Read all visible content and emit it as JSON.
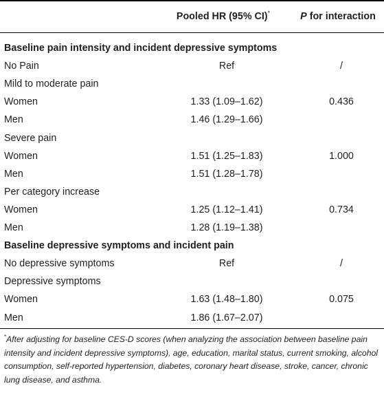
{
  "header": {
    "hr_label": "Pooled HR (95% CI)",
    "hr_marker": "*",
    "p_label_italic": "P",
    "p_label_rest": " for interaction"
  },
  "rows": [
    {
      "type": "section",
      "label": "Baseline pain intensity and incident depressive symptoms",
      "hr": "",
      "p": ""
    },
    {
      "type": "data",
      "label": "No Pain",
      "hr": "Ref",
      "p": "/"
    },
    {
      "type": "data",
      "label": "Mild to moderate pain",
      "hr": "",
      "p": ""
    },
    {
      "type": "data",
      "label": "Women",
      "hr": "1.33 (1.09–1.62)",
      "p": "0.436"
    },
    {
      "type": "data",
      "label": "Men",
      "hr": "1.46 (1.29–1.66)",
      "p": ""
    },
    {
      "type": "data",
      "label": "Severe pain",
      "hr": "",
      "p": ""
    },
    {
      "type": "data",
      "label": "Women",
      "hr": "1.51 (1.25–1.83)",
      "p": "1.000"
    },
    {
      "type": "data",
      "label": "Men",
      "hr": "1.51 (1.28–1.78)",
      "p": ""
    },
    {
      "type": "data",
      "label": "Per category increase",
      "hr": "",
      "p": ""
    },
    {
      "type": "data",
      "label": "Women",
      "hr": "1.25 (1.12–1.41)",
      "p": "0.734"
    },
    {
      "type": "data",
      "label": "Men",
      "hr": "1.28 (1.19–1.38)",
      "p": ""
    },
    {
      "type": "section",
      "label": "Baseline depressive symptoms and incident pain",
      "hr": "",
      "p": ""
    },
    {
      "type": "data",
      "label": "No depressive symptoms",
      "hr": "Ref",
      "p": "/"
    },
    {
      "type": "data",
      "label": "Depressive symptoms",
      "hr": "",
      "p": ""
    },
    {
      "type": "data",
      "label": "Women",
      "hr": "1.63 (1.48–1.80)",
      "p": "0.075"
    },
    {
      "type": "data",
      "label": "Men",
      "hr": "1.86 (1.67–2.07)",
      "p": ""
    }
  ],
  "footnote": {
    "marker": "*",
    "text": "After adjusting for baseline CES-D scores (when analyzing the association between baseline pain intensity and incident depressive symptoms), age, education, marital status, current smoking, alcohol consumption, self-reported hypertension, diabetes, coronary heart disease, stroke, cancer, chronic lung disease, and asthma."
  }
}
